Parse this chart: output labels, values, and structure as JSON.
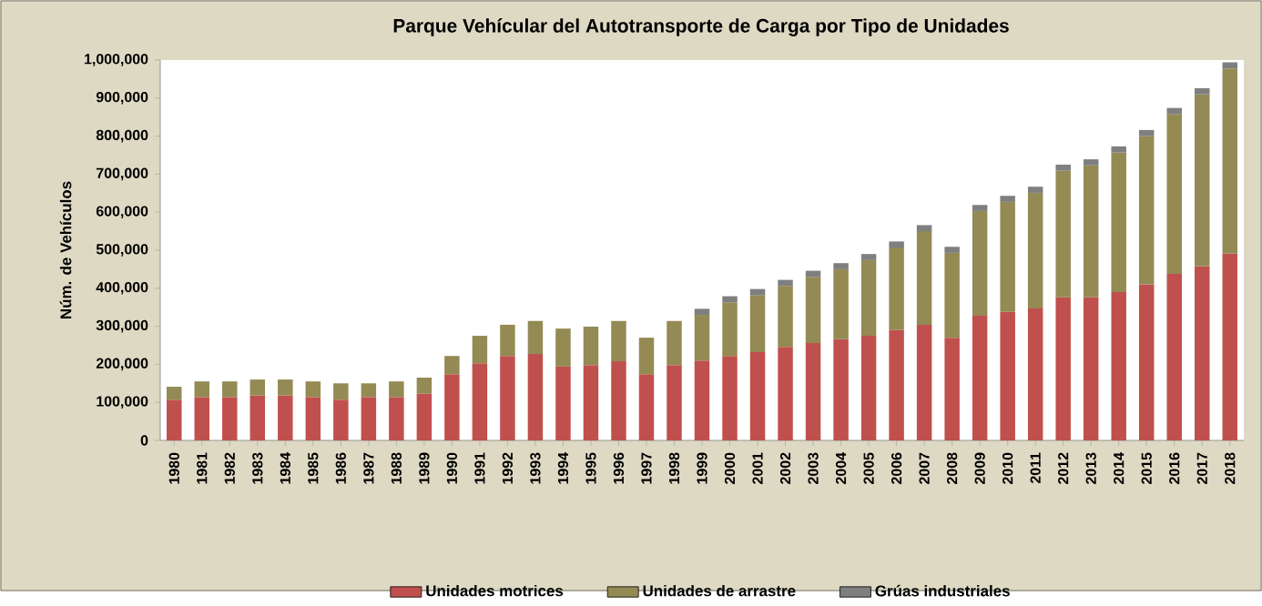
{
  "chart_data": {
    "type": "bar",
    "stacked": true,
    "title": "Parque Vehícular del Autotransporte de Carga por Tipo de Unidades",
    "ylabel": "Núm. de Vehículos",
    "legend": "bottom",
    "categories": [
      "1980",
      "1981",
      "1982",
      "1983",
      "1984",
      "1985",
      "1986",
      "1987",
      "1988",
      "1989",
      "1990",
      "1991",
      "1992",
      "1993",
      "1994",
      "1995",
      "1996",
      "1997",
      "1998",
      "1999",
      "2000",
      "2001",
      "2002",
      "2003",
      "2004",
      "2005",
      "2006",
      "2007",
      "2008",
      "2009",
      "2010",
      "2011",
      "2012",
      "2013",
      "2014",
      "2015",
      "2016",
      "2017",
      "2018"
    ],
    "series": [
      {
        "name": "Unidades motrices",
        "color": "#c0504d",
        "values": [
          107000,
          114000,
          114000,
          118000,
          118000,
          114000,
          107000,
          114000,
          114000,
          123000,
          174000,
          203000,
          222000,
          227000,
          194000,
          198000,
          208000,
          174000,
          198000,
          210000,
          222000,
          232000,
          246000,
          256000,
          266000,
          275000,
          290000,
          304000,
          270000,
          328000,
          338000,
          347000,
          376000,
          376000,
          390000,
          410000,
          438000,
          458000,
          491000
        ]
      },
      {
        "name": "Unidades de arrastre",
        "color": "#948a54",
        "values": [
          34000,
          41000,
          41000,
          42000,
          42000,
          41000,
          43000,
          36000,
          41000,
          42000,
          48000,
          72000,
          82000,
          87000,
          100000,
          101000,
          106000,
          96000,
          116000,
          120000,
          141000,
          150000,
          160000,
          174000,
          184000,
          199000,
          217000,
          246000,
          223000,
          275000,
          289000,
          304000,
          333000,
          347000,
          367000,
          390000,
          420000,
          452000,
          487000
        ]
      },
      {
        "name": "Grúas industriales",
        "color": "#7f7f7f",
        "values": [
          null,
          null,
          null,
          null,
          null,
          null,
          null,
          null,
          null,
          null,
          null,
          null,
          null,
          null,
          null,
          null,
          null,
          null,
          null,
          16000,
          16000,
          16000,
          16000,
          16000,
          16000,
          16000,
          16000,
          16000,
          16000,
          16000,
          16000,
          16000,
          16000,
          16000,
          16000,
          16000,
          16000,
          16000,
          16000
        ]
      }
    ],
    "ylim": [
      0,
      1000000
    ],
    "yticks": [
      {
        "value": 0,
        "label": "0"
      },
      {
        "value": 100000,
        "label": "100,000"
      },
      {
        "value": 200000,
        "label": "200,000"
      },
      {
        "value": 300000,
        "label": "300,000"
      },
      {
        "value": 400000,
        "label": "400,000"
      },
      {
        "value": 500000,
        "label": "500,000"
      },
      {
        "value": 600000,
        "label": "600,000"
      },
      {
        "value": 700000,
        "label": "700,000"
      },
      {
        "value": 800000,
        "label": "800,000"
      },
      {
        "value": 900000,
        "label": "900,000"
      },
      {
        "value": 1000000,
        "label": "1,000,000"
      }
    ]
  }
}
